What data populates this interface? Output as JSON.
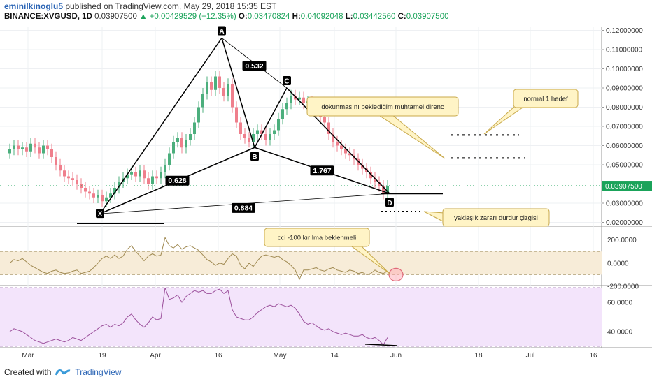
{
  "header": {
    "author": "eminilkinoglu5",
    "published": "published on TradingView.com, May 29, 2018 15:35 EST",
    "symbol": "BINANCE:XVGUSD, 1D",
    "price": "0.03907500",
    "change": "+0.00429529 (+12.35%)",
    "o_label": "O:",
    "o_val": "0.03470824",
    "h_label": "H:",
    "h_val": "0.04092048",
    "l_label": "L:",
    "l_val": "0.03442560",
    "c_label": "C:",
    "c_val": "0.03907500"
  },
  "footer": {
    "created_with": "Created with",
    "brand": "TradingView"
  },
  "colors": {
    "up": "#4caf7d",
    "down": "#ef7f8c",
    "pattern": "#000000",
    "cci_line": "#a08a52",
    "cci_band": "#f7ecd8",
    "rsi_line": "#9b4f9b",
    "rsi_band": "#f3e4fb",
    "price_line_color": "#1aa35a"
  },
  "chart_data": [
    {
      "type": "candlestick",
      "x_ticks": [
        "Mar",
        "19",
        "Apr",
        "16",
        "May",
        "14",
        "Jun",
        "18",
        "Jul",
        "16"
      ],
      "ylim": [
        0.018,
        0.122
      ],
      "y_ticks": [
        "0.12000000",
        "0.11000000",
        "0.10000000",
        "0.09000000",
        "0.08000000",
        "0.07000000",
        "0.06000000",
        "0.05000000",
        "0.04000000",
        "0.03000000",
        "0.02000000"
      ],
      "last_price": "0.03907500",
      "candles_close": [
        0.058,
        0.06,
        0.058,
        0.059,
        0.057,
        0.061,
        0.059,
        0.056,
        0.06,
        0.058,
        0.054,
        0.05,
        0.047,
        0.044,
        0.043,
        0.042,
        0.04,
        0.038,
        0.036,
        0.035,
        0.033,
        0.034,
        0.031,
        0.033,
        0.035,
        0.038,
        0.041,
        0.043,
        0.045,
        0.046,
        0.044,
        0.047,
        0.043,
        0.04,
        0.044,
        0.043,
        0.046,
        0.05,
        0.056,
        0.062,
        0.064,
        0.059,
        0.063,
        0.066,
        0.072,
        0.08,
        0.087,
        0.093,
        0.089,
        0.096,
        0.09,
        0.086,
        0.092,
        0.08,
        0.072,
        0.066,
        0.064,
        0.062,
        0.066,
        0.068,
        0.066,
        0.063,
        0.066,
        0.068,
        0.074,
        0.079,
        0.082,
        0.086,
        0.084,
        0.085,
        0.082,
        0.083,
        0.08,
        0.078,
        0.075,
        0.072,
        0.066,
        0.062,
        0.06,
        0.058,
        0.056,
        0.055,
        0.053,
        0.05,
        0.048,
        0.046,
        0.043,
        0.041,
        0.039,
        0.035,
        0.039
      ],
      "points": [
        {
          "label": "X",
          "x": "Mar 15",
          "y": 0.0245
        },
        {
          "label": "A",
          "x": "Apr 16",
          "y": 0.116
        },
        {
          "label": "B",
          "x": "Apr 25",
          "y": 0.059
        },
        {
          "label": "C",
          "x": "May 3",
          "y": 0.09
        },
        {
          "label": "D",
          "x": "May 29",
          "y": 0.035
        }
      ],
      "ratios": [
        "0.532",
        "0.628",
        "1.767",
        "0.884"
      ],
      "annotations": [
        "dokunmasını beklediğim muhtamel direnc",
        "normal 1 hedef",
        "yaklaşık zararı durdur çizgisi"
      ],
      "horizontal_levels": [
        0.0655,
        0.0535,
        0.0245
      ]
    },
    {
      "type": "line",
      "name": "CCI",
      "ylim": [
        -200,
        300
      ],
      "y_ticks": [
        "200.0000",
        "0.0000",
        "-200.0000"
      ],
      "band": [
        -100,
        100
      ],
      "values": [
        0,
        30,
        20,
        40,
        10,
        -20,
        -40,
        -60,
        -80,
        -90,
        -70,
        -60,
        -80,
        -90,
        -85,
        -70,
        -60,
        -90,
        -80,
        -70,
        -40,
        0,
        40,
        60,
        40,
        70,
        40,
        60,
        120,
        150,
        100,
        60,
        20,
        60,
        80,
        60,
        70,
        220,
        150,
        130,
        160,
        120,
        140,
        150,
        130,
        110,
        70,
        30,
        10,
        -20,
        0,
        -10,
        40,
        80,
        60,
        -20,
        -50,
        0,
        -30,
        20,
        60,
        70,
        60,
        50,
        60,
        30,
        10,
        -20,
        -60,
        -140,
        -60,
        -60,
        -50,
        -40,
        -60,
        -70,
        -50,
        -40,
        -60,
        -70,
        -80,
        -60,
        -70,
        -90,
        -80,
        -100,
        -90,
        -60,
        -80,
        -90,
        -70
      ],
      "annotation": "cci -100 kırılma beklenmeli"
    },
    {
      "type": "line",
      "name": "RSI",
      "ylim": [
        30,
        70
      ],
      "y_ticks": [
        "60.0000",
        "40.0000"
      ],
      "band": [
        30,
        70
      ],
      "values": [
        40,
        42,
        41,
        40,
        38,
        36,
        34,
        33,
        32,
        33,
        34,
        35,
        34,
        33,
        34,
        36,
        35,
        34,
        36,
        38,
        40,
        42,
        44,
        45,
        43,
        45,
        44,
        46,
        50,
        52,
        48,
        45,
        43,
        46,
        50,
        48,
        49,
        70,
        62,
        63,
        65,
        60,
        64,
        66,
        68,
        67,
        68,
        66,
        66,
        68,
        69,
        66,
        68,
        55,
        50,
        49,
        48,
        48,
        50,
        53,
        55,
        57,
        58,
        57,
        59,
        58,
        57,
        58,
        56,
        52,
        47,
        45,
        46,
        44,
        42,
        41,
        42,
        40,
        39,
        38,
        39,
        38,
        37,
        37,
        38,
        36,
        35,
        36,
        34,
        31,
        36
      ]
    }
  ]
}
